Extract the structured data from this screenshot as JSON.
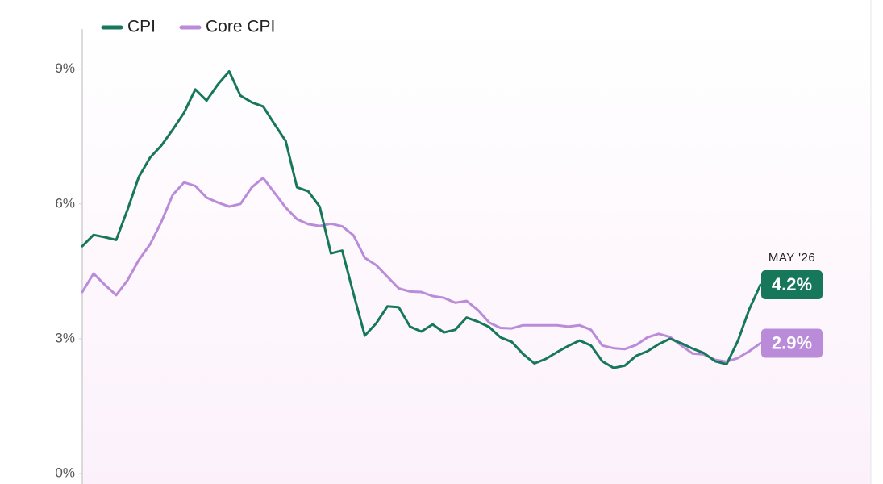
{
  "chart_data": {
    "type": "line",
    "categories": [
      null,
      null,
      null,
      null,
      null,
      null,
      null,
      null,
      null,
      null,
      null,
      null,
      null,
      null,
      null,
      null,
      null,
      null,
      null,
      null,
      null,
      null,
      null,
      null,
      null,
      null,
      null,
      null,
      null,
      null,
      null,
      null,
      null,
      null,
      null,
      null,
      null,
      null,
      null,
      null,
      null,
      null,
      null,
      null,
      null,
      null,
      null,
      null,
      null,
      null,
      null,
      null,
      null,
      null,
      null,
      null,
      null,
      null,
      null,
      null,
      "MAY '26"
    ],
    "series": [
      {
        "name": "CPI",
        "color": "#17775a",
        "values": [
          5.06,
          5.31,
          5.26,
          5.2,
          5.87,
          6.6,
          7.03,
          7.3,
          7.65,
          8.03,
          8.55,
          8.3,
          8.66,
          8.95,
          8.41,
          8.26,
          8.17,
          7.78,
          7.4,
          6.37,
          6.28,
          5.94,
          4.9,
          4.96,
          4.0,
          3.07,
          3.34,
          3.72,
          3.7,
          3.27,
          3.16,
          3.32,
          3.14,
          3.2,
          3.47,
          3.38,
          3.26,
          3.03,
          2.93,
          2.66,
          2.45,
          2.55,
          2.7,
          2.84,
          2.96,
          2.85,
          2.5,
          2.35,
          2.4,
          2.62,
          2.72,
          2.88,
          3.0,
          2.9,
          2.78,
          2.68,
          2.5,
          2.43,
          2.95,
          3.65,
          4.2
        ],
        "value_labels": [
          null,
          null,
          null,
          null,
          null,
          null,
          null,
          null,
          null,
          null,
          null,
          null,
          null,
          null,
          null,
          null,
          null,
          null,
          null,
          null,
          null,
          null,
          null,
          null,
          null,
          null,
          null,
          null,
          null,
          null,
          null,
          null,
          null,
          null,
          null,
          null,
          null,
          null,
          null,
          null,
          null,
          null,
          null,
          null,
          null,
          null,
          null,
          null,
          null,
          null,
          null,
          null,
          null,
          null,
          null,
          null,
          null,
          null,
          null,
          null,
          "4.2%"
        ]
      },
      {
        "name": "Core CPI",
        "color": "#b98bd9",
        "values": [
          4.04,
          4.45,
          4.2,
          3.97,
          4.3,
          4.75,
          5.1,
          5.6,
          6.2,
          6.48,
          6.4,
          6.14,
          6.03,
          5.94,
          6.0,
          6.37,
          6.58,
          6.25,
          5.92,
          5.66,
          5.55,
          5.51,
          5.56,
          5.5,
          5.3,
          4.8,
          4.64,
          4.38,
          4.12,
          4.05,
          4.04,
          3.95,
          3.91,
          3.8,
          3.84,
          3.64,
          3.36,
          3.24,
          3.23,
          3.3,
          3.3,
          3.3,
          3.3,
          3.27,
          3.3,
          3.2,
          2.85,
          2.79,
          2.77,
          2.86,
          3.03,
          3.11,
          3.04,
          2.85,
          2.67,
          2.65,
          2.53,
          2.49,
          2.57,
          2.72,
          2.9
        ],
        "value_labels": [
          null,
          null,
          null,
          null,
          null,
          null,
          null,
          null,
          null,
          null,
          null,
          null,
          null,
          null,
          null,
          null,
          null,
          null,
          null,
          null,
          null,
          null,
          null,
          null,
          null,
          null,
          null,
          null,
          null,
          null,
          null,
          null,
          null,
          null,
          null,
          null,
          null,
          null,
          null,
          null,
          null,
          null,
          null,
          null,
          null,
          null,
          null,
          null,
          null,
          null,
          null,
          null,
          null,
          null,
          null,
          null,
          null,
          null,
          null,
          null,
          "2.9%"
        ]
      }
    ],
    "ylim": [
      0,
      10
    ],
    "yticks": [
      {
        "value": 0,
        "label": "0%"
      },
      {
        "value": 3,
        "label": "3%"
      },
      {
        "value": 6,
        "label": "6%"
      },
      {
        "value": 9,
        "label": "9%"
      }
    ],
    "legend": "top-left",
    "grid": false
  }
}
